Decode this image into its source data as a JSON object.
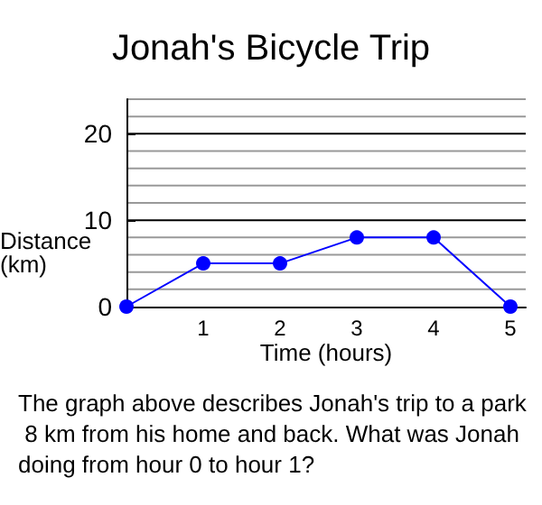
{
  "chart_data": {
    "type": "line",
    "title": "Jonah's Bicycle Trip",
    "xlabel": "Time (hours)",
    "ylabel": "Distance (km)",
    "x": [
      0,
      1,
      2,
      3,
      4,
      5
    ],
    "series": [
      {
        "color": "#0000ff",
        "values": [
          0,
          5,
          5,
          8,
          8,
          0
        ]
      }
    ],
    "xlim": [
      0,
      5.2
    ],
    "xticks": [
      1,
      2,
      3,
      4,
      5
    ],
    "ylim": [
      0,
      24
    ],
    "yticks": [
      0,
      {
        "value": 2,
        "label": null
      },
      {
        "value": 4,
        "label": null
      },
      {
        "value": 6,
        "label": null
      },
      {
        "value": 8,
        "label": null
      },
      10,
      {
        "value": 12,
        "label": null
      },
      {
        "value": 14,
        "label": null
      },
      {
        "value": 16,
        "label": null
      },
      {
        "value": 18,
        "label": null
      },
      20,
      {
        "value": 22,
        "label": null
      },
      {
        "value": 24,
        "label": null
      }
    ],
    "grid": "y",
    "marker": "circle",
    "line_style": "solid",
    "annotations": [
      "The graph above describes Jonah's trip to a park 8 km from his home and back. What was Jonah doing from hour 0 to hour 1?"
    ]
  }
}
